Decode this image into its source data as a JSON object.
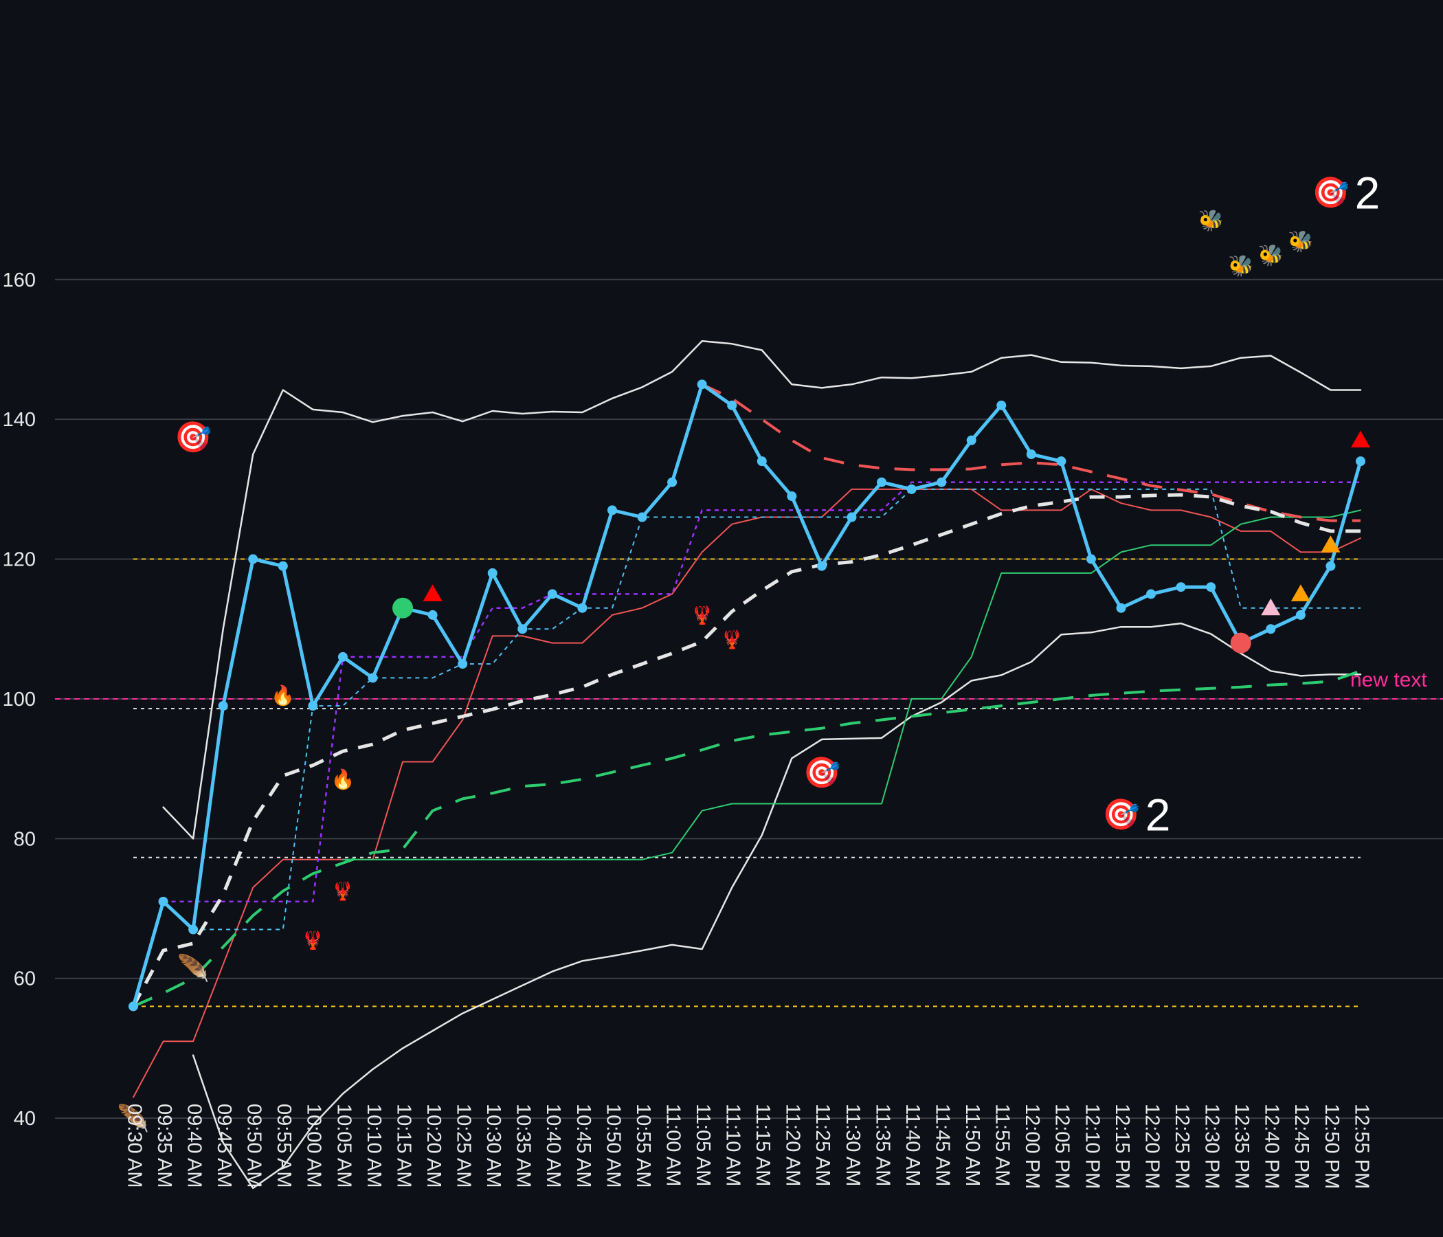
{
  "chart_data": {
    "type": "line",
    "title": "",
    "xlabel": "",
    "ylabel": "",
    "x": [
      "09:30 AM",
      "09:35 AM",
      "09:40 AM",
      "09:45 AM",
      "09:50 AM",
      "09:55 AM",
      "10:00 AM",
      "10:05 AM",
      "10:10 AM",
      "10:15 AM",
      "10:20 AM",
      "10:25 AM",
      "10:30 AM",
      "10:35 AM",
      "10:40 AM",
      "10:45 AM",
      "10:50 AM",
      "10:55 AM",
      "11:00 AM",
      "11:05 AM",
      "11:10 AM",
      "11:15 AM",
      "11:20 AM",
      "11:25 AM",
      "11:30 AM",
      "11:35 AM",
      "11:40 AM",
      "11:45 AM",
      "11:50 AM",
      "11:55 AM",
      "12:00 PM",
      "12:05 PM",
      "12:10 PM",
      "12:15 PM",
      "12:20 PM",
      "12:25 PM",
      "12:30 PM",
      "12:35 PM",
      "12:40 PM",
      "12:45 PM",
      "12:50 PM",
      "12:55 PM"
    ],
    "ylim": [
      23,
      200
    ],
    "yticks": [
      40,
      60,
      80,
      100,
      120,
      140,
      160
    ],
    "grid": true,
    "colors": {
      "background": "#0d1017",
      "grid": "#3a3d44",
      "price": "#4fc3f7",
      "bands": "#e6e6e6",
      "red": "#f05555",
      "green": "#2ecc71",
      "purple": "#9b30ff",
      "yellow": "#f5c518",
      "magenta": "#ff2d9b",
      "marker_red": "#ff0000",
      "marker_orange": "#ffa000",
      "marker_pink": "#f8bbd0"
    },
    "series": [
      {
        "values": [
          56,
          71,
          67,
          99,
          120,
          119,
          99,
          106,
          103,
          113,
          112,
          105,
          118,
          110,
          115,
          113,
          127,
          126,
          131,
          145,
          142,
          134,
          129,
          119,
          126,
          131,
          130,
          131,
          137,
          142,
          135,
          134,
          120,
          113,
          115,
          116,
          116,
          108,
          110,
          112,
          119,
          134
        ]
      },
      {
        "values": [
          null,
          84.5,
          80,
          110,
          135,
          144.2,
          141.4,
          141,
          139.6,
          140.5,
          141,
          139.7,
          141.2,
          140.8,
          141.1,
          141,
          143,
          144.6,
          146.8,
          151.2,
          150.8,
          149.9,
          145,
          144.5,
          145,
          146,
          145.9,
          146.3,
          146.8,
          148.8,
          149.2,
          148.2,
          148.1,
          147.7,
          147.6,
          147.3,
          147.6,
          148.8,
          149.1,
          146.7,
          144.2,
          144.2
        ]
      },
      {
        "values": [
          null,
          null,
          49,
          36.5,
          30,
          33,
          39,
          43.5,
          47,
          50,
          52.5,
          55,
          57,
          59,
          61,
          62.5,
          63.2,
          64,
          64.8,
          64.2,
          73,
          80.5,
          91.5,
          94.2,
          94.3,
          94.4,
          97.5,
          99.5,
          102.6,
          103.4,
          105.3,
          109.2,
          109.5,
          110.3,
          110.3,
          110.8,
          109.3,
          106.5,
          104,
          103.3,
          103.5,
          103.5
        ]
      },
      {
        "values": [
          56,
          64,
          65,
          72,
          82.5,
          89,
          90.5,
          92.5,
          93.5,
          95.5,
          96.5,
          97.5,
          98.5,
          99.7,
          100.6,
          101.7,
          103.5,
          105,
          106.5,
          108.2,
          112.5,
          115.5,
          118.2,
          119.2,
          119.6,
          120.6,
          122,
          123.5,
          125,
          126.5,
          127.6,
          128.2,
          128.9,
          128.9,
          129.1,
          129.2,
          128.9,
          127.6,
          126.8,
          125.2,
          124,
          124
        ]
      },
      {
        "values": [
          null,
          null,
          null,
          null,
          null,
          null,
          null,
          null,
          null,
          null,
          null,
          null,
          null,
          null,
          null,
          null,
          null,
          null,
          null,
          145,
          143,
          140,
          137,
          134.5,
          133.5,
          133,
          132.8,
          132.8,
          132.9,
          133.5,
          133.8,
          133.5,
          132.5,
          131.5,
          130.5,
          129.9,
          129.3,
          128,
          126.8,
          126,
          125.5,
          125.5
        ]
      },
      {
        "values": [
          56,
          57.9,
          60,
          64.5,
          69,
          72.5,
          75,
          76.5,
          78,
          78.5,
          84,
          85.7,
          86.5,
          87.5,
          87.8,
          88.5,
          89.5,
          90.5,
          91.5,
          92.7,
          94,
          94.8,
          95.3,
          95.8,
          96.5,
          97,
          97.5,
          98,
          98.5,
          99,
          99.5,
          100,
          100.5,
          100.8,
          101.1,
          101.3,
          101.5,
          101.7,
          102,
          102.2,
          102.5,
          104
        ]
      },
      {
        "values": [
          43,
          51,
          51,
          62,
          73,
          77,
          77,
          77,
          77,
          91,
          91,
          97,
          109,
          109,
          108,
          108,
          112,
          113,
          115,
          121,
          125,
          126,
          126,
          126,
          130,
          130,
          130,
          130,
          130,
          127,
          127,
          127,
          130,
          128,
          127,
          127,
          126,
          124,
          124,
          121,
          121,
          123
        ]
      },
      {
        "values": [
          null,
          null,
          null,
          null,
          null,
          null,
          null,
          77,
          77,
          77,
          77,
          77,
          77,
          77,
          77,
          77,
          77,
          77,
          78,
          84,
          85,
          85,
          85,
          85,
          85,
          85,
          100,
          100,
          106,
          118,
          118,
          118,
          118,
          121,
          122,
          122,
          122,
          125,
          126,
          126,
          126,
          127
        ]
      },
      {
        "values": [
          null,
          71,
          71,
          71,
          71,
          71,
          71,
          106,
          106,
          106,
          106,
          106,
          113,
          113,
          115,
          115,
          115,
          115,
          115,
          127,
          127,
          127,
          127,
          127,
          127,
          127,
          131,
          131,
          131,
          131,
          131,
          131,
          131,
          131,
          131,
          131,
          131,
          131,
          131,
          131,
          131,
          131
        ]
      },
      {
        "values": [
          null,
          null,
          67,
          67,
          67,
          67,
          99,
          99,
          103,
          103,
          103,
          105,
          105,
          110,
          110,
          113,
          113,
          126,
          126,
          126,
          126,
          126,
          126,
          126,
          126,
          126,
          130,
          130,
          130,
          130,
          130,
          130,
          130,
          130,
          130,
          130,
          130,
          113,
          113,
          113,
          113,
          113
        ]
      }
    ],
    "hlines": [
      {
        "y": 120,
        "color": "yellow"
      },
      {
        "y": 56,
        "color": "yellow"
      },
      {
        "y": 100,
        "color": "magenta",
        "label": "new text"
      },
      {
        "y": 98.6,
        "color": "white"
      },
      {
        "y": 77.3,
        "color": "white"
      }
    ],
    "annotations": [
      {
        "x": "09:40 AM",
        "y": 137.5,
        "glyph": "🎯"
      },
      {
        "x": "11:25 AM",
        "y": 89.5,
        "glyph": "🎯"
      },
      {
        "x": "12:15 PM",
        "y": 83.5,
        "glyph": "🎯",
        "text": "2"
      },
      {
        "x": "12:50 PM",
        "y": 172.5,
        "glyph": "🎯",
        "text": "2"
      },
      {
        "x": "09:55 AM",
        "y": 100.5,
        "glyph": "🔥"
      },
      {
        "x": "10:05 AM",
        "y": 88.5,
        "glyph": "🔥"
      },
      {
        "x": "10:00 AM",
        "y": 65.5,
        "glyph": "🦞"
      },
      {
        "x": "10:05 AM",
        "y": 72.5,
        "glyph": "🦞"
      },
      {
        "x": "11:05 AM",
        "y": 112,
        "glyph": "🦞"
      },
      {
        "x": "11:10 AM",
        "y": 108.5,
        "glyph": "🦞"
      },
      {
        "x": "09:30 AM",
        "y": 40,
        "glyph": "🪶"
      },
      {
        "x": "09:40 AM",
        "y": 61.5,
        "glyph": "🪶"
      },
      {
        "x": "12:30 PM",
        "y": 168.5,
        "glyph": "🐝"
      },
      {
        "x": "12:35 PM",
        "y": 162,
        "glyph": "🐝"
      },
      {
        "x": "12:40 PM",
        "y": 163.5,
        "glyph": "🐝"
      },
      {
        "x": "12:45 PM",
        "y": 165.5,
        "glyph": "🐝"
      }
    ],
    "markers": [
      {
        "x": "10:15 AM",
        "y": 113,
        "shape": "circle",
        "color": "green"
      },
      {
        "x": "12:35 PM",
        "y": 108,
        "shape": "circle",
        "color": "red"
      },
      {
        "x": "10:20 AM",
        "y": 115,
        "shape": "triangle",
        "color": "marker_red"
      },
      {
        "x": "12:55 PM",
        "y": 137,
        "shape": "triangle",
        "color": "marker_red"
      },
      {
        "x": "12:40 PM",
        "y": 113,
        "shape": "triangle",
        "color": "marker_pink"
      },
      {
        "x": "12:45 PM",
        "y": 115,
        "shape": "triangle",
        "color": "marker_orange"
      },
      {
        "x": "12:50 PM",
        "y": 122,
        "shape": "triangle",
        "color": "marker_orange"
      }
    ]
  }
}
